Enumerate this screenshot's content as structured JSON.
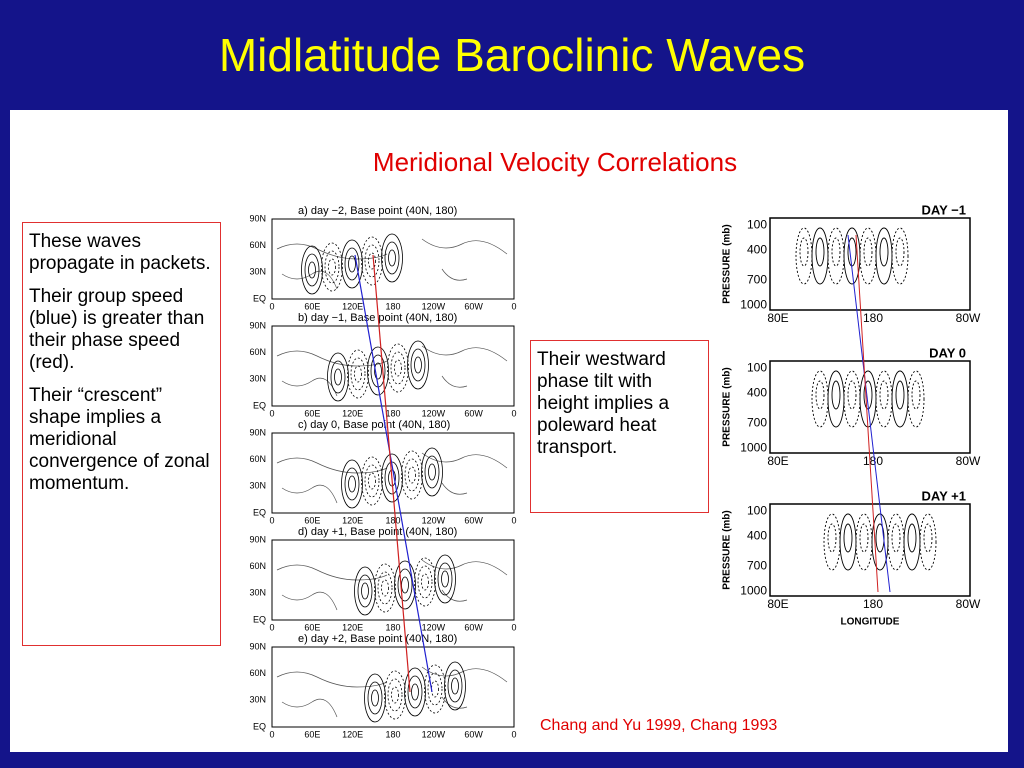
{
  "title": "Midlatitude Baroclinic Waves",
  "subtitle": "Meridional Velocity Correlations",
  "left_box": {
    "paragraphs": [
      "These waves propagate in packets.",
      "Their group speed (blue) is greater than their phase speed (red).",
      "Their “crescent” shape implies a meridional convergence of zonal momentum."
    ]
  },
  "right_box": {
    "text": "Their westward phase tilt with height implies a poleward heat transport."
  },
  "citation": "Chang and Yu 1999, Chang 1993",
  "map_panels": {
    "labels": [
      "a)  day −2, Base point (40N, 180)",
      "b)  day −1, Base point (40N, 180)",
      "c)  day 0, Base point (40N, 180)",
      "d)  day +1, Base point (40N, 180)",
      "e)  day +2, Base point (40N, 180)"
    ],
    "lat_ticks": [
      "90N",
      "60N",
      "30N",
      "EQ"
    ],
    "lon_ticks": [
      "0",
      "60E",
      "120E",
      "180",
      "120W",
      "60W",
      "0"
    ]
  },
  "section_panels": {
    "labels": [
      "DAY −1",
      "DAY 0",
      "DAY +1"
    ],
    "pressure_ticks": [
      100,
      400,
      700,
      1000
    ],
    "lon_ticks": [
      "80E",
      "180",
      "80W"
    ],
    "y_axis_label": "PRESSURE  (mb)",
    "x_axis_label": "LONGITUDE"
  }
}
